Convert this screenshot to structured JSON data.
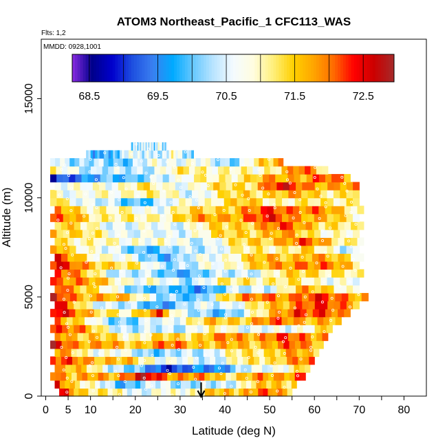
{
  "chart_data": {
    "type": "heatmap",
    "title": "ATOM3 Northeast_Pacific_1 CFC113_WAS",
    "subtitle_flights": "Flts: 1,2",
    "subtitle_dates": "MMDD: 0928,1001",
    "xlabel": "Latitude (deg N)",
    "ylabel": "Altitude (m)",
    "xlim": [
      -1,
      85
    ],
    "ylim": [
      0,
      18000
    ],
    "x_ticks": [
      0,
      5,
      10,
      20,
      30,
      40,
      50,
      60,
      70,
      80
    ],
    "x_tick_labels": [
      "0",
      "5",
      "10",
      "20",
      "30",
      "40",
      "50",
      "60",
      "70",
      "80"
    ],
    "y_ticks": [
      0,
      5000,
      10000,
      15000
    ],
    "y_tick_labels": [
      "0",
      "5000",
      "10000",
      "15000"
    ],
    "colorbar": {
      "min": 68.25,
      "max": 72.95,
      "tick_values": [
        68.5,
        69.5,
        70.5,
        71.5,
        72.5
      ],
      "tick_labels": [
        "68.5",
        "69.5",
        "70.5",
        "71.5",
        "72.5"
      ],
      "colors": [
        "#8a2be2",
        "#00008b",
        "#0000cd",
        "#1e50e0",
        "#3a7ff0",
        "#00aaff",
        "#66c8ff",
        "#b8e4ff",
        "#f4fbff",
        "#fffde0",
        "#ffef7a",
        "#ffd000",
        "#ffa500",
        "#ff6a00",
        "#ff0000",
        "#cc0000",
        "#a52a2a"
      ]
    },
    "arrow_marker_latitude": 34.7,
    "layers": [
      {
        "alt": 200,
        "lat": [
          3,
          55
        ],
        "vals": [
          72.3,
          71.6,
          71.2,
          70.8,
          70.6,
          70.7,
          71.0,
          71.3,
          71.6,
          71.8,
          71.9,
          71.7
        ]
      },
      {
        "alt": 600,
        "lat": [
          2,
          56
        ],
        "vals": [
          72.4,
          71.4,
          70.5,
          69.9,
          70.2,
          70.5,
          70.3,
          70.1,
          70.6,
          71.2,
          71.6,
          71.5
        ]
      },
      {
        "alt": 1000,
        "lat": [
          1,
          58
        ],
        "vals": [
          72.5,
          71.5,
          71.7,
          71.9,
          72.6,
          72.1,
          71.8,
          71.6,
          71.4,
          71.7,
          71.9,
          72.1
        ]
      },
      {
        "alt": 1400,
        "lat": [
          2,
          59
        ],
        "vals": [
          72.0,
          71.4,
          70.9,
          70.2,
          69.5,
          69.1,
          69.3,
          69.6,
          70.2,
          70.6,
          71.0,
          71.4
        ]
      },
      {
        "alt": 1800,
        "lat": [
          1,
          60
        ],
        "vals": [
          72.3,
          71.9,
          71.8,
          71.5,
          71.1,
          70.7,
          70.4,
          70.6,
          71.0,
          71.4,
          71.7,
          71.9
        ]
      },
      {
        "alt": 2200,
        "lat": [
          2,
          61
        ],
        "vals": [
          71.8,
          71.2,
          70.8,
          70.5,
          70.2,
          70.1,
          70.4,
          70.8,
          71.2,
          71.5,
          71.6,
          71.4
        ]
      },
      {
        "alt": 2600,
        "lat": [
          1,
          62
        ],
        "vals": [
          72.6,
          72.0,
          71.7,
          71.5,
          71.8,
          71.9,
          71.7,
          71.5,
          71.6,
          71.8,
          72.0,
          71.7
        ]
      },
      {
        "alt": 3000,
        "lat": [
          2,
          63
        ],
        "vals": [
          72.1,
          71.6,
          71.3,
          71.1,
          71.2,
          71.4,
          71.6,
          71.8,
          71.9,
          72.0,
          72.1,
          71.8
        ]
      },
      {
        "alt": 3400,
        "lat": [
          1,
          64
        ],
        "vals": [
          72.5,
          72.0,
          71.0,
          70.4,
          70.2,
          70.5,
          70.8,
          70.9,
          70.6,
          70.4,
          71.0,
          71.5
        ]
      },
      {
        "alt": 3800,
        "lat": [
          2,
          66
        ],
        "vals": [
          72.2,
          71.0,
          70.4,
          70.0,
          70.5,
          71.0,
          71.4,
          71.6,
          71.8,
          72.0,
          71.7,
          71.4
        ]
      },
      {
        "alt": 4200,
        "lat": [
          1,
          68
        ],
        "vals": [
          72.7,
          71.8,
          71.5,
          70.8,
          72.4,
          70.3,
          69.8,
          70.5,
          71.2,
          72.5,
          72.1,
          71.6
        ]
      },
      {
        "alt": 4600,
        "lat": [
          2,
          70
        ],
        "vals": [
          72.4,
          71.2,
          70.4,
          70.0,
          69.8,
          70.3,
          70.6,
          70.9,
          71.5,
          72.3,
          72.0,
          71.8
        ]
      },
      {
        "alt": 5000,
        "lat": [
          1,
          72
        ],
        "vals": [
          72.6,
          71.9,
          71.6,
          71.3,
          70.2,
          69.6,
          71.5,
          71.8,
          72.0,
          72.2,
          72.0,
          71.9
        ]
      },
      {
        "alt": 5400,
        "lat": [
          2,
          70
        ],
        "vals": [
          72.5,
          71.6,
          70.6,
          70.2,
          69.8,
          69.6,
          70.1,
          70.3,
          70.8,
          71.6,
          71.4,
          70.6
        ]
      },
      {
        "alt": 5800,
        "lat": [
          1,
          70
        ],
        "vals": [
          72.3,
          71.8,
          71.4,
          70.8,
          70.6,
          70.4,
          70.9,
          71.3,
          71.2,
          71.0,
          70.9,
          70.5
        ]
      },
      {
        "alt": 6200,
        "lat": [
          2,
          71
        ],
        "vals": [
          72.6,
          71.4,
          70.6,
          70.3,
          69.9,
          70.0,
          70.2,
          70.6,
          71.0,
          71.6,
          71.2,
          70.8
        ]
      },
      {
        "alt": 6600,
        "lat": [
          1,
          70
        ],
        "vals": [
          72.4,
          71.9,
          71.6,
          71.0,
          70.5,
          70.2,
          70.8,
          71.3,
          71.6,
          72.2,
          71.8,
          71.2
        ]
      },
      {
        "alt": 7000,
        "lat": [
          2,
          71
        ],
        "vals": [
          72.2,
          71.4,
          70.8,
          70.3,
          69.9,
          70.4,
          70.9,
          71.4,
          71.6,
          71.8,
          71.4,
          71.0
        ]
      },
      {
        "alt": 7400,
        "lat": [
          1,
          70
        ],
        "vals": [
          72.0,
          71.2,
          70.4,
          70.1,
          70.0,
          70.3,
          70.7,
          71.0,
          71.2,
          71.3,
          70.8,
          70.4
        ]
      },
      {
        "alt": 7800,
        "lat": [
          2,
          71
        ],
        "vals": [
          71.6,
          71.0,
          70.8,
          71.0,
          70.7,
          70.5,
          70.9,
          71.4,
          71.8,
          72.0,
          71.5,
          70.9
        ]
      },
      {
        "alt": 8200,
        "lat": [
          1,
          70
        ],
        "vals": [
          71.8,
          71.2,
          71.0,
          70.6,
          70.4,
          70.8,
          71.2,
          71.5,
          71.7,
          71.4,
          71.0,
          70.7
        ]
      },
      {
        "alt": 8600,
        "lat": [
          2,
          71
        ],
        "vals": [
          71.7,
          71.0,
          70.7,
          70.5,
          70.6,
          70.9,
          71.3,
          71.7,
          72.0,
          71.8,
          71.2,
          70.8
        ]
      },
      {
        "alt": 9000,
        "lat": [
          1,
          70
        ],
        "vals": [
          71.9,
          71.6,
          71.2,
          70.9,
          71.2,
          71.5,
          71.8,
          72.0,
          72.2,
          71.9,
          71.4,
          71.0
        ]
      },
      {
        "alt": 9400,
        "lat": [
          2,
          71
        ],
        "vals": [
          71.8,
          71.3,
          71.0,
          70.7,
          70.9,
          71.3,
          71.6,
          71.8,
          72.3,
          72.0,
          71.5,
          71.1
        ]
      },
      {
        "alt": 9800,
        "lat": [
          1,
          70
        ],
        "vals": [
          71.6,
          70.8,
          70.2,
          70.0,
          70.3,
          70.8,
          71.2,
          71.4,
          71.2,
          71.0,
          71.2,
          71.3
        ]
      },
      {
        "alt": 10200,
        "lat": [
          1,
          70
        ],
        "vals": [
          71.2,
          70.6,
          70.8,
          71.2,
          70.9,
          70.6,
          71.0,
          71.4,
          71.6,
          71.5,
          71.3,
          71.4
        ]
      },
      {
        "alt": 10600,
        "lat": [
          2,
          70
        ],
        "vals": [
          71.0,
          70.6,
          70.8,
          71.3,
          70.7,
          70.9,
          71.2,
          71.4,
          72.4,
          72.0,
          71.8,
          71.6
        ]
      },
      {
        "alt": 11000,
        "lat": [
          1,
          68
        ],
        "vals": [
          68.8,
          69.2,
          70.2,
          69.6,
          70.6,
          70.8,
          71.0,
          71.3,
          71.6,
          71.8,
          72.1,
          71.5
        ]
      },
      {
        "alt": 11400,
        "lat": [
          1,
          63
        ],
        "vals": [
          70.9,
          70.6,
          70.4,
          70.2,
          70.6,
          71.0,
          71.2,
          71.0,
          70.8,
          71.4,
          72.0,
          71.2
        ]
      },
      {
        "alt": 11800,
        "lat": [
          1,
          53
        ],
        "vals": [
          70.6,
          70.4,
          70.2,
          70.0,
          70.3,
          70.6,
          70.8,
          70.6,
          70.4,
          70.2,
          71.4,
          72.0
        ]
      },
      {
        "alt": 12200,
        "lat": [
          9,
          33
        ],
        "vals": [
          70.3,
          69.8,
          69.6,
          70.1,
          70.4,
          70.7,
          70.5,
          70.2,
          70.6,
          70.8,
          70.4,
          70.2
        ]
      },
      {
        "alt": 12600,
        "lat": [
          19,
          27
        ],
        "vals": [
          70.1,
          70.4,
          70.2,
          70.5,
          70.3,
          70.6,
          70.4,
          70.2,
          70.5,
          70.7,
          70.3,
          70.1
        ]
      }
    ]
  }
}
